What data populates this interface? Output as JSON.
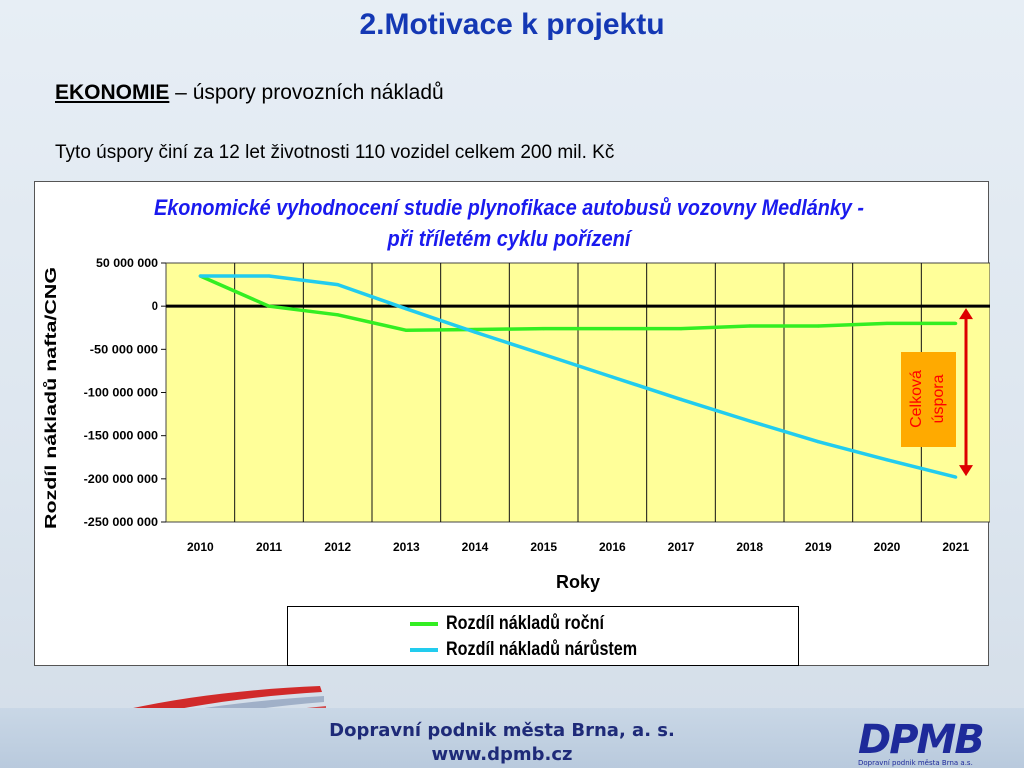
{
  "slide": {
    "title": "2.Motivace k projektu",
    "subhead_keyword": "EKONOMIE",
    "subhead_rest": " – úspory provozních nákladů",
    "line2": "Tyto úspory činí za 12 let životnosti 110 vozidel celkem 200 mil. Kč"
  },
  "chart_data": {
    "type": "line",
    "title_line1": "Ekonomické vyhodnocení studie plynofikace autobusů vozovny Medlánky -",
    "title_line2": "při tříletém cyklu pořízení",
    "xlabel": "Roky",
    "ylabel": "Rozdíl nákladů nafta/CNG",
    "categories": [
      "2010",
      "2011",
      "2012",
      "2013",
      "2014",
      "2015",
      "2016",
      "2017",
      "2018",
      "2019",
      "2020",
      "2021"
    ],
    "ylim": [
      -250000000,
      50000000
    ],
    "yticks": [
      50000000,
      0,
      -50000000,
      -100000000,
      -150000000,
      -200000000,
      -250000000
    ],
    "ytick_labels": [
      "50 000 000",
      "0",
      "-50 000 000",
      "-100 000 000",
      "-150 000 000",
      "-200 000 000",
      "-250 000 000"
    ],
    "series": [
      {
        "name": "Rozdíl nákladů roční",
        "color": "#33ee22",
        "values": [
          35000000,
          0,
          -10000000,
          -28000000,
          -27000000,
          -26000000,
          -26000000,
          -26000000,
          -23000000,
          -23000000,
          -20000000,
          -20000000
        ]
      },
      {
        "name": "Rozdíl nákladů nárůstem",
        "color": "#22ccee",
        "values": [
          35000000,
          35000000,
          25000000,
          -3000000,
          -30000000,
          -56000000,
          -82000000,
          -108000000,
          -133000000,
          -157000000,
          -178000000,
          -198000000
        ]
      }
    ],
    "annotation": {
      "text_line1": "Celková",
      "text_line2": "úspora",
      "text_color": "#ff0000",
      "box_color": "#ffaa00",
      "arrow_color": "#dd0000"
    },
    "plot_bg": "#ffff99",
    "grid": true
  },
  "footer": {
    "line1": "Dopravní podnik města Brna, a. s.",
    "line2": "www.dpmb.cz",
    "logo": "DPMB",
    "logo_caption": "Dopravní podnik města Brna a.s."
  }
}
